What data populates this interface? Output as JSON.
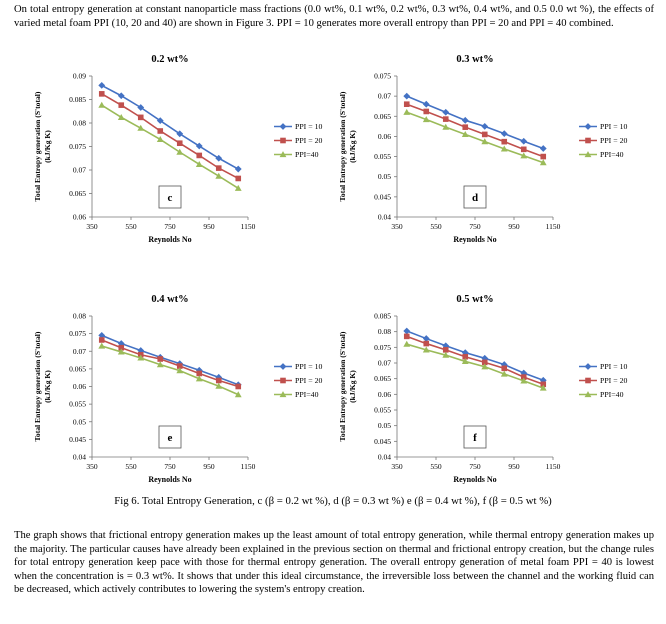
{
  "intro": "On total entropy generation at constant nanoparticle mass fractions (0.0 wt%, 0.1 wt%, 0.2 wt%, 0.3 wt%, 0.4 wt%, and 0.5 0.0 wt %), the effects of varied metal foam PPI (10, 20 and 40) are shown in Figure 3. PPI = 10 generates more overall entropy than PPI = 20 and PPI = 40 combined.",
  "caption": "Fig 6. Total Entropy Generation, c (β = 0.2 wt %), d (β = 0.3 wt %) e (β = 0.4 wt %), f (β = 0.5 wt %)",
  "para2": "The graph shows that frictional entropy generation makes up the least amount of total entropy generation, while thermal entropy generation makes up the majority. The particular causes have already been explained in the previous section on thermal and frictional entropy creation, but the change rules for total entropy generation keep pace with those for thermal entropy generation. The overall entropy generation of metal foam PPI = 40 is lowest when the concentration is = 0.3 wt%. It shows that under this ideal circumstance, the irreversible loss between the channel and the working fluid can be decreased, which actively contributes to lowering the system's entropy creation.",
  "colors": {
    "ppi10": "#4472C4",
    "ppi20": "#C0504D",
    "ppi40": "#9BBB59"
  },
  "chart_data": [
    {
      "type": "line",
      "title": "0.2 wt%",
      "tag": "c",
      "xlabel": "Reynolds No",
      "ylabel": [
        "Total Entropy generation (S'total)",
        "(kJ/Kg K)"
      ],
      "xticks": [
        "350",
        "550",
        "750",
        "950",
        "1150"
      ],
      "xlim": [
        350,
        1150
      ],
      "yticks": [
        "0.06",
        "0.065",
        "0.07",
        "0.075",
        "0.08",
        "0.085",
        "0.09"
      ],
      "ylim": [
        0.06,
        0.09
      ],
      "x": [
        400,
        500,
        600,
        700,
        800,
        900,
        1000,
        1100
      ],
      "series": [
        {
          "name": "PPI = 10",
          "values": [
            0.088,
            0.0858,
            0.0833,
            0.0805,
            0.0777,
            0.0751,
            0.0725,
            0.0702
          ]
        },
        {
          "name": "PPI = 20",
          "values": [
            0.0862,
            0.0838,
            0.0812,
            0.0783,
            0.0757,
            0.0731,
            0.0704,
            0.0682
          ]
        },
        {
          "name": "PPI=40",
          "values": [
            0.0838,
            0.0812,
            0.0789,
            0.0765,
            0.0738,
            0.0712,
            0.0687,
            0.0661
          ]
        }
      ]
    },
    {
      "type": "line",
      "title": "0.3 wt%",
      "tag": "d",
      "xlabel": "Reynolds No",
      "ylabel": [
        "Total Entropy generation (S'total)",
        "(kJ/Kg K)"
      ],
      "xticks": [
        "350",
        "550",
        "750",
        "950",
        "1150"
      ],
      "xlim": [
        350,
        1150
      ],
      "yticks": [
        "0.04",
        "0.045",
        "0.05",
        "0.055",
        "0.06",
        "0.065",
        "0.07",
        "0.075"
      ],
      "ylim": [
        0.04,
        0.075
      ],
      "x": [
        400,
        500,
        600,
        700,
        800,
        900,
        1000,
        1100
      ],
      "series": [
        {
          "name": "PPI = 10",
          "values": [
            0.07,
            0.068,
            0.066,
            0.064,
            0.0625,
            0.0607,
            0.0588,
            0.057
          ]
        },
        {
          "name": "PPI = 20",
          "values": [
            0.068,
            0.0662,
            0.0643,
            0.0623,
            0.0605,
            0.0587,
            0.0568,
            0.055
          ]
        },
        {
          "name": "PPI=40",
          "values": [
            0.066,
            0.0642,
            0.0623,
            0.0605,
            0.0587,
            0.0569,
            0.0552,
            0.0535
          ]
        }
      ]
    },
    {
      "type": "line",
      "title": "0.4 wt%",
      "tag": "e",
      "xlabel": "Reynolds No",
      "ylabel": [
        "Total Entropy generation (S'total)",
        "(kJ/Kg K)"
      ],
      "xticks": [
        "350",
        "550",
        "750",
        "950",
        "1150"
      ],
      "xlim": [
        350,
        1150
      ],
      "yticks": [
        "0.04",
        "0.045",
        "0.05",
        "0.055",
        "0.06",
        "0.065",
        "0.07",
        "0.075",
        "0.08"
      ],
      "ylim": [
        0.04,
        0.08
      ],
      "x": [
        400,
        500,
        600,
        700,
        800,
        900,
        1000,
        1100
      ],
      "series": [
        {
          "name": "PPI = 10",
          "values": [
            0.0745,
            0.0722,
            0.0702,
            0.0683,
            0.0665,
            0.0646,
            0.0626,
            0.0605
          ]
        },
        {
          "name": "PPI = 20",
          "values": [
            0.0732,
            0.071,
            0.069,
            0.0678,
            0.0658,
            0.0637,
            0.0617,
            0.06
          ]
        },
        {
          "name": "PPI=40",
          "values": [
            0.0715,
            0.0698,
            0.0681,
            0.0662,
            0.0645,
            0.0622,
            0.0601,
            0.0577
          ]
        }
      ]
    },
    {
      "type": "line",
      "title": "0.5 wt%",
      "tag": "f",
      "xlabel": "Reynolds No",
      "ylabel": [
        "Total Entropy generation (S'total)",
        "(kJ/Kg K)"
      ],
      "xticks": [
        "350",
        "550",
        "750",
        "950",
        "1150"
      ],
      "xlim": [
        350,
        1150
      ],
      "yticks": [
        "0.04",
        "0.045",
        "0.05",
        "0.055",
        "0.06",
        "0.065",
        "0.07",
        "0.075",
        "0.08",
        "0.085"
      ],
      "ylim": [
        0.04,
        0.085
      ],
      "x": [
        400,
        500,
        600,
        700,
        800,
        900,
        1000,
        1100
      ],
      "series": [
        {
          "name": "PPI = 10",
          "values": [
            0.0802,
            0.0778,
            0.0755,
            0.0733,
            0.0715,
            0.0695,
            0.0668,
            0.0645
          ]
        },
        {
          "name": "PPI = 20",
          "values": [
            0.0785,
            0.0762,
            0.0742,
            0.072,
            0.0702,
            0.0683,
            0.0655,
            0.0632
          ]
        },
        {
          "name": "PPI=40",
          "values": [
            0.076,
            0.0742,
            0.0725,
            0.0705,
            0.0688,
            0.0665,
            0.0643,
            0.062
          ]
        }
      ]
    }
  ]
}
